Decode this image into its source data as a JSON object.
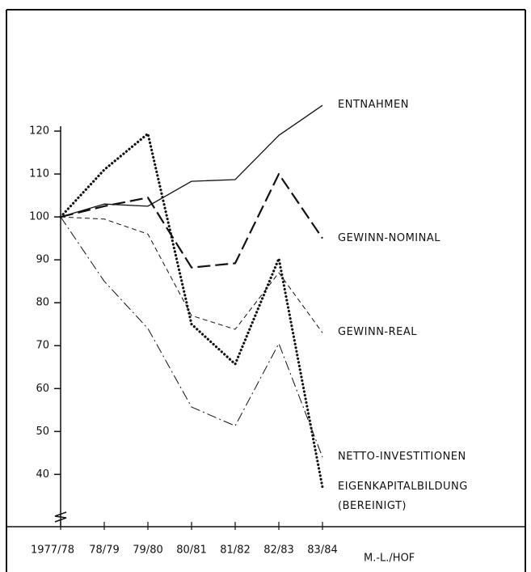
{
  "chart_data": {
    "type": "line",
    "categories": [
      "1977/78",
      "78/79",
      "79/80",
      "80/81",
      "81/82",
      "82/83",
      "83/84"
    ],
    "x_label": "M.-L./HOF",
    "ylim": [
      28,
      130
    ],
    "yticks": [
      40,
      50,
      60,
      70,
      80,
      90,
      100,
      110,
      120
    ],
    "series": [
      {
        "name": "ENTNAHMEN",
        "color": "#111111",
        "style": "solid",
        "values": [
          100,
          103,
          102.5,
          108.3,
          108.7,
          119,
          126
        ]
      },
      {
        "name": "GEWINN-NOMINAL",
        "color": "#111111",
        "style": "long-dash",
        "values": [
          100,
          102.5,
          104.5,
          88.2,
          89.2,
          110,
          95
        ]
      },
      {
        "name": "GEWINN-REAL",
        "color": "#111111",
        "style": "dash",
        "values": [
          100,
          99.5,
          96,
          77,
          73.8,
          87,
          73
        ]
      },
      {
        "name": "NETTO-INVESTITIONEN",
        "color": "#111111",
        "style": "dash-dot",
        "values": [
          100,
          85,
          74,
          55.7,
          51.3,
          70.5,
          44
        ]
      },
      {
        "name": "EIGENKAPITALBILDUNG (BEREINIGT)",
        "color": "#111111",
        "style": "dotted",
        "values": [
          100,
          111,
          119.4,
          75,
          65.7,
          90.3,
          37
        ]
      }
    ]
  }
}
